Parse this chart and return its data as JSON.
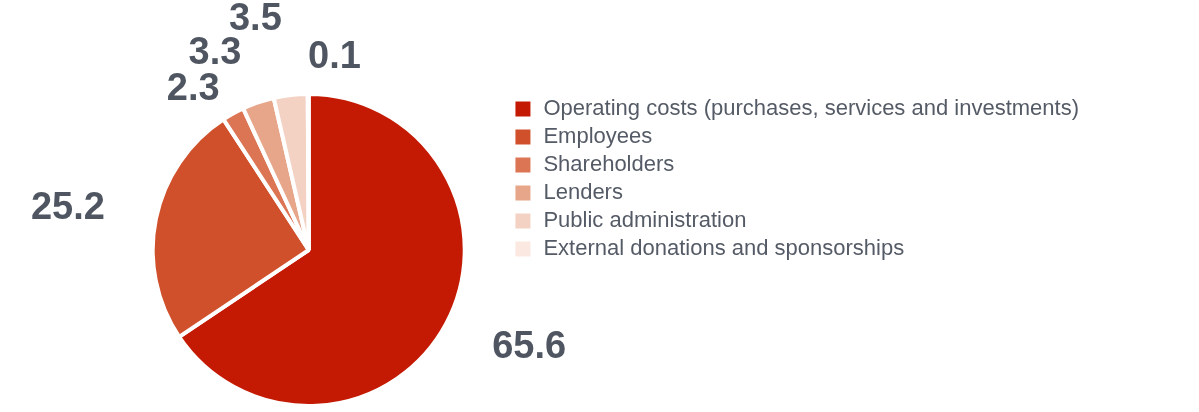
{
  "chart_data": {
    "type": "pie",
    "categories": [
      "Operating costs (purchases, services and investments)",
      "Employees",
      "Shareholders",
      "Lenders",
      "Public administration",
      "External donations and sponsorships"
    ],
    "values": [
      65.6,
      25.2,
      2.3,
      3.3,
      3.5,
      0.1
    ],
    "colors": [
      "#c41a03",
      "#d0502c",
      "#dc7553",
      "#e7a689",
      "#f3d2c4",
      "#fbe8e1"
    ],
    "data_labels": true,
    "legend": "right"
  }
}
